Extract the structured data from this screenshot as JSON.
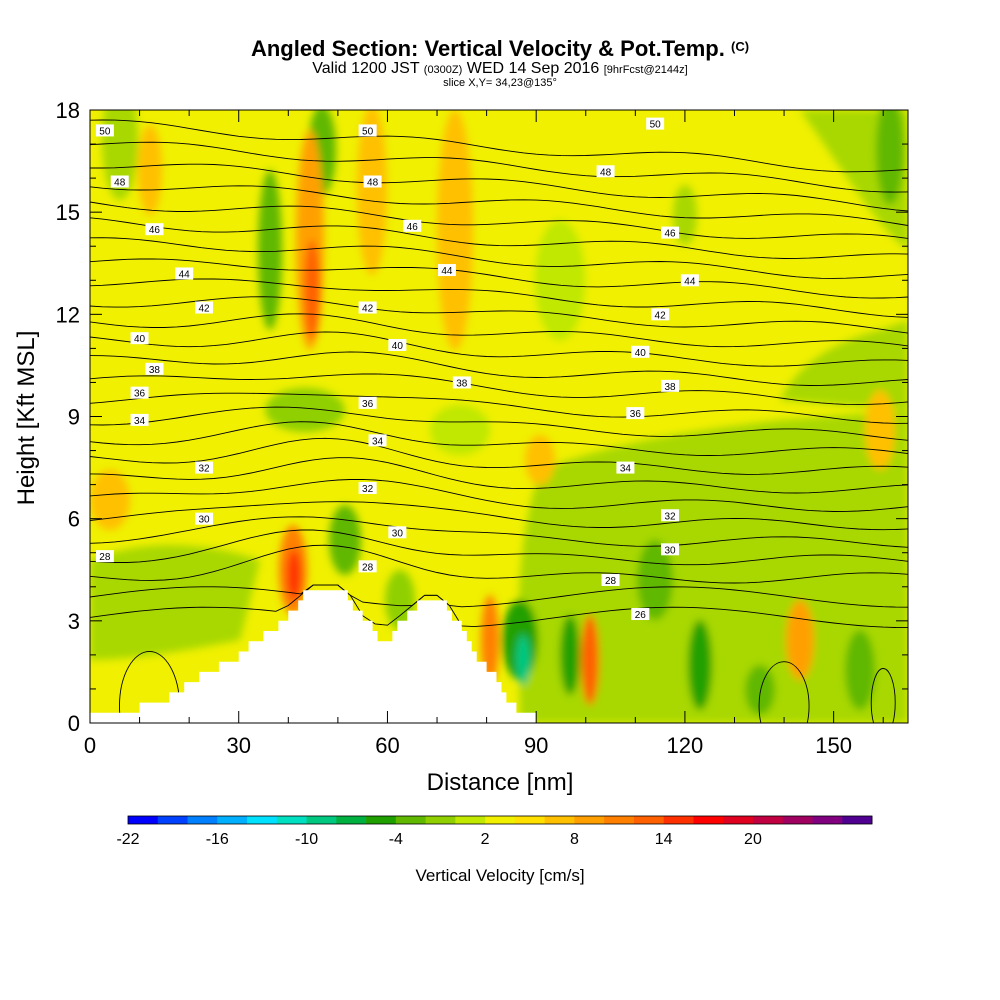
{
  "header": {
    "title_main": "Angled Section: Vertical Velocity & Pot.Temp.",
    "title_mark": "(C)",
    "valid_a": "Valid 1200 JST",
    "valid_b": "(0300Z)",
    "valid_c": "WED 14 Sep 2016",
    "valid_d": "[9hrFcst@2144z]",
    "slice": "slice X,Y= 34,23@135°"
  },
  "chart_data": {
    "type": "heatmap",
    "xlabel": "Distance [nm]",
    "ylabel": "Height [Kft MSL]",
    "xlim": [
      0,
      165
    ],
    "ylim": [
      0,
      18
    ],
    "xticks": [
      "0",
      "30",
      "60",
      "90",
      "120",
      "150"
    ],
    "yticks": [
      "0",
      "3",
      "6",
      "9",
      "12",
      "15",
      "18"
    ],
    "colorbar": {
      "title": "Vertical Velocity [cm/s]",
      "labels": [
        "-22",
        "-16",
        "-10",
        "-4",
        "2",
        "8",
        "14",
        "20"
      ],
      "colors": [
        "#0000ff",
        "#0040ff",
        "#0080ff",
        "#00b0ff",
        "#00e0ff",
        "#00e0c0",
        "#00c880",
        "#00b040",
        "#20a000",
        "#60b800",
        "#90d000",
        "#c0e800",
        "#f0f000",
        "#ffe000",
        "#ffc000",
        "#ffa000",
        "#ff8000",
        "#ff6000",
        "#ff3000",
        "#ff0000",
        "#e00020",
        "#c00040",
        "#a00060",
        "#800080",
        "#500090"
      ]
    },
    "theta_labels": [
      {
        "text": "50",
        "x": 3,
        "y": 17.4
      },
      {
        "text": "50",
        "x": 56,
        "y": 17.4
      },
      {
        "text": "50",
        "x": 114,
        "y": 17.6
      },
      {
        "text": "48",
        "x": 6,
        "y": 15.9
      },
      {
        "text": "48",
        "x": 57,
        "y": 15.9
      },
      {
        "text": "48",
        "x": 104,
        "y": 16.2
      },
      {
        "text": "46",
        "x": 13,
        "y": 14.5
      },
      {
        "text": "46",
        "x": 65,
        "y": 14.6
      },
      {
        "text": "46",
        "x": 117,
        "y": 14.4
      },
      {
        "text": "44",
        "x": 19,
        "y": 13.2
      },
      {
        "text": "44",
        "x": 72,
        "y": 13.3
      },
      {
        "text": "44",
        "x": 121,
        "y": 13.0
      },
      {
        "text": "42",
        "x": 23,
        "y": 12.2
      },
      {
        "text": "42",
        "x": 56,
        "y": 12.2
      },
      {
        "text": "42",
        "x": 115,
        "y": 12.0
      },
      {
        "text": "40",
        "x": 10,
        "y": 11.3
      },
      {
        "text": "40",
        "x": 62,
        "y": 11.1
      },
      {
        "text": "40",
        "x": 111,
        "y": 10.9
      },
      {
        "text": "38",
        "x": 13,
        "y": 10.4
      },
      {
        "text": "38",
        "x": 75,
        "y": 10.0
      },
      {
        "text": "38",
        "x": 117,
        "y": 9.9
      },
      {
        "text": "36",
        "x": 10,
        "y": 9.7
      },
      {
        "text": "36",
        "x": 56,
        "y": 9.4
      },
      {
        "text": "36",
        "x": 110,
        "y": 9.1
      },
      {
        "text": "34",
        "x": 10,
        "y": 8.9
      },
      {
        "text": "34",
        "x": 58,
        "y": 8.3
      },
      {
        "text": "34",
        "x": 108,
        "y": 7.5
      },
      {
        "text": "32",
        "x": 23,
        "y": 7.5
      },
      {
        "text": "32",
        "x": 56,
        "y": 6.9
      },
      {
        "text": "32",
        "x": 117,
        "y": 6.1
      },
      {
        "text": "30",
        "x": 23,
        "y": 6.0
      },
      {
        "text": "30",
        "x": 62,
        "y": 5.6
      },
      {
        "text": "30",
        "x": 117,
        "y": 5.1
      },
      {
        "text": "28",
        "x": 3,
        "y": 4.9
      },
      {
        "text": "28",
        "x": 56,
        "y": 4.6
      },
      {
        "text": "28",
        "x": 105,
        "y": 4.2
      },
      {
        "text": "26",
        "x": 111,
        "y": 3.2
      }
    ]
  }
}
